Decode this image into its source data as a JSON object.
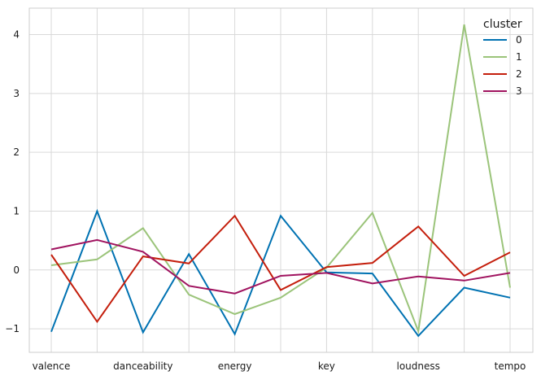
{
  "chart_data": {
    "type": "line",
    "title": "",
    "xlabel": "",
    "ylabel": "",
    "categories": [
      "valence",
      "",
      "danceability",
      "",
      "energy",
      "",
      "key",
      "",
      "loudness",
      "",
      "tempo"
    ],
    "x_tick_labels": [
      "valence",
      "danceability",
      "energy",
      "key",
      "loudness",
      "tempo"
    ],
    "ylim": [
      -1.4,
      4.45
    ],
    "yticks": [
      -1,
      0,
      1,
      2,
      3,
      4
    ],
    "ytick_labels": [
      "−1",
      "0",
      "1",
      "2",
      "3",
      "4"
    ],
    "grid": true,
    "legend": {
      "title": "cluster",
      "position": "top-right"
    },
    "series": [
      {
        "name": "0",
        "color": "#0072b2",
        "values": [
          -1.05,
          1.0,
          -1.06,
          0.27,
          -1.09,
          0.92,
          -0.04,
          -0.06,
          -1.12,
          -0.3,
          -0.47
        ]
      },
      {
        "name": "1",
        "color": "#9bc47a",
        "values": [
          0.08,
          0.18,
          0.71,
          -0.42,
          -0.75,
          -0.47,
          0.04,
          0.97,
          -1.04,
          4.17,
          -0.3
        ]
      },
      {
        "name": "2",
        "color": "#c41e0c",
        "values": [
          0.26,
          -0.88,
          0.23,
          0.11,
          0.92,
          -0.34,
          0.05,
          0.12,
          0.74,
          -0.1,
          0.3
        ]
      },
      {
        "name": "3",
        "color": "#a0135f",
        "values": [
          0.35,
          0.51,
          0.31,
          -0.27,
          -0.4,
          -0.1,
          -0.05,
          -0.23,
          -0.11,
          -0.18,
          -0.05
        ]
      }
    ]
  }
}
